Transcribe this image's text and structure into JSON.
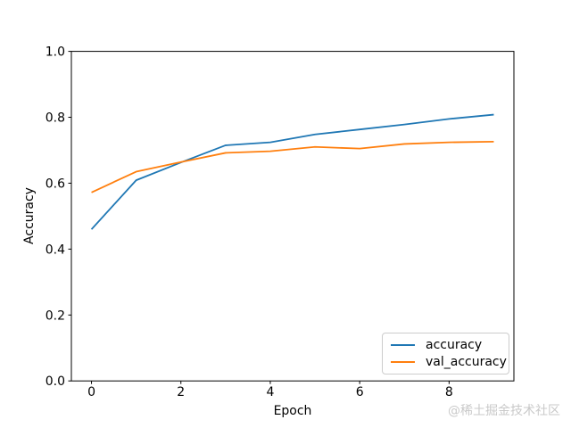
{
  "watermark": {
    "text": "@稀土掘金技术社区"
  },
  "chart_data": {
    "type": "line",
    "title": "",
    "xlabel": "Epoch",
    "ylabel": "Accuracy",
    "x": [
      0,
      1,
      2,
      3,
      4,
      5,
      6,
      7,
      8,
      9
    ],
    "series": [
      {
        "name": "accuracy",
        "color": "#1f77b4",
        "values": [
          0.46,
          0.609,
          0.663,
          0.715,
          0.724,
          0.748,
          0.763,
          0.778,
          0.795,
          0.808
        ]
      },
      {
        "name": "val_accuracy",
        "color": "#ff7f0e",
        "values": [
          0.572,
          0.635,
          0.664,
          0.692,
          0.697,
          0.71,
          0.705,
          0.719,
          0.724,
          0.726
        ]
      }
    ],
    "xlim": [
      -0.45,
      9.45
    ],
    "ylim": [
      0.0,
      1.0
    ],
    "x_ticks": {
      "positions": [
        0,
        2,
        4,
        6,
        8
      ],
      "labels": [
        "0",
        "2",
        "4",
        "6",
        "8"
      ]
    },
    "y_ticks": {
      "positions": [
        0.0,
        0.2,
        0.4,
        0.6,
        0.8,
        1.0
      ],
      "labels": [
        "0.0",
        "0.2",
        "0.4",
        "0.6",
        "0.8",
        "1.0"
      ]
    },
    "grid": false,
    "legend_position": "lower right",
    "frame_color": "#000000"
  }
}
